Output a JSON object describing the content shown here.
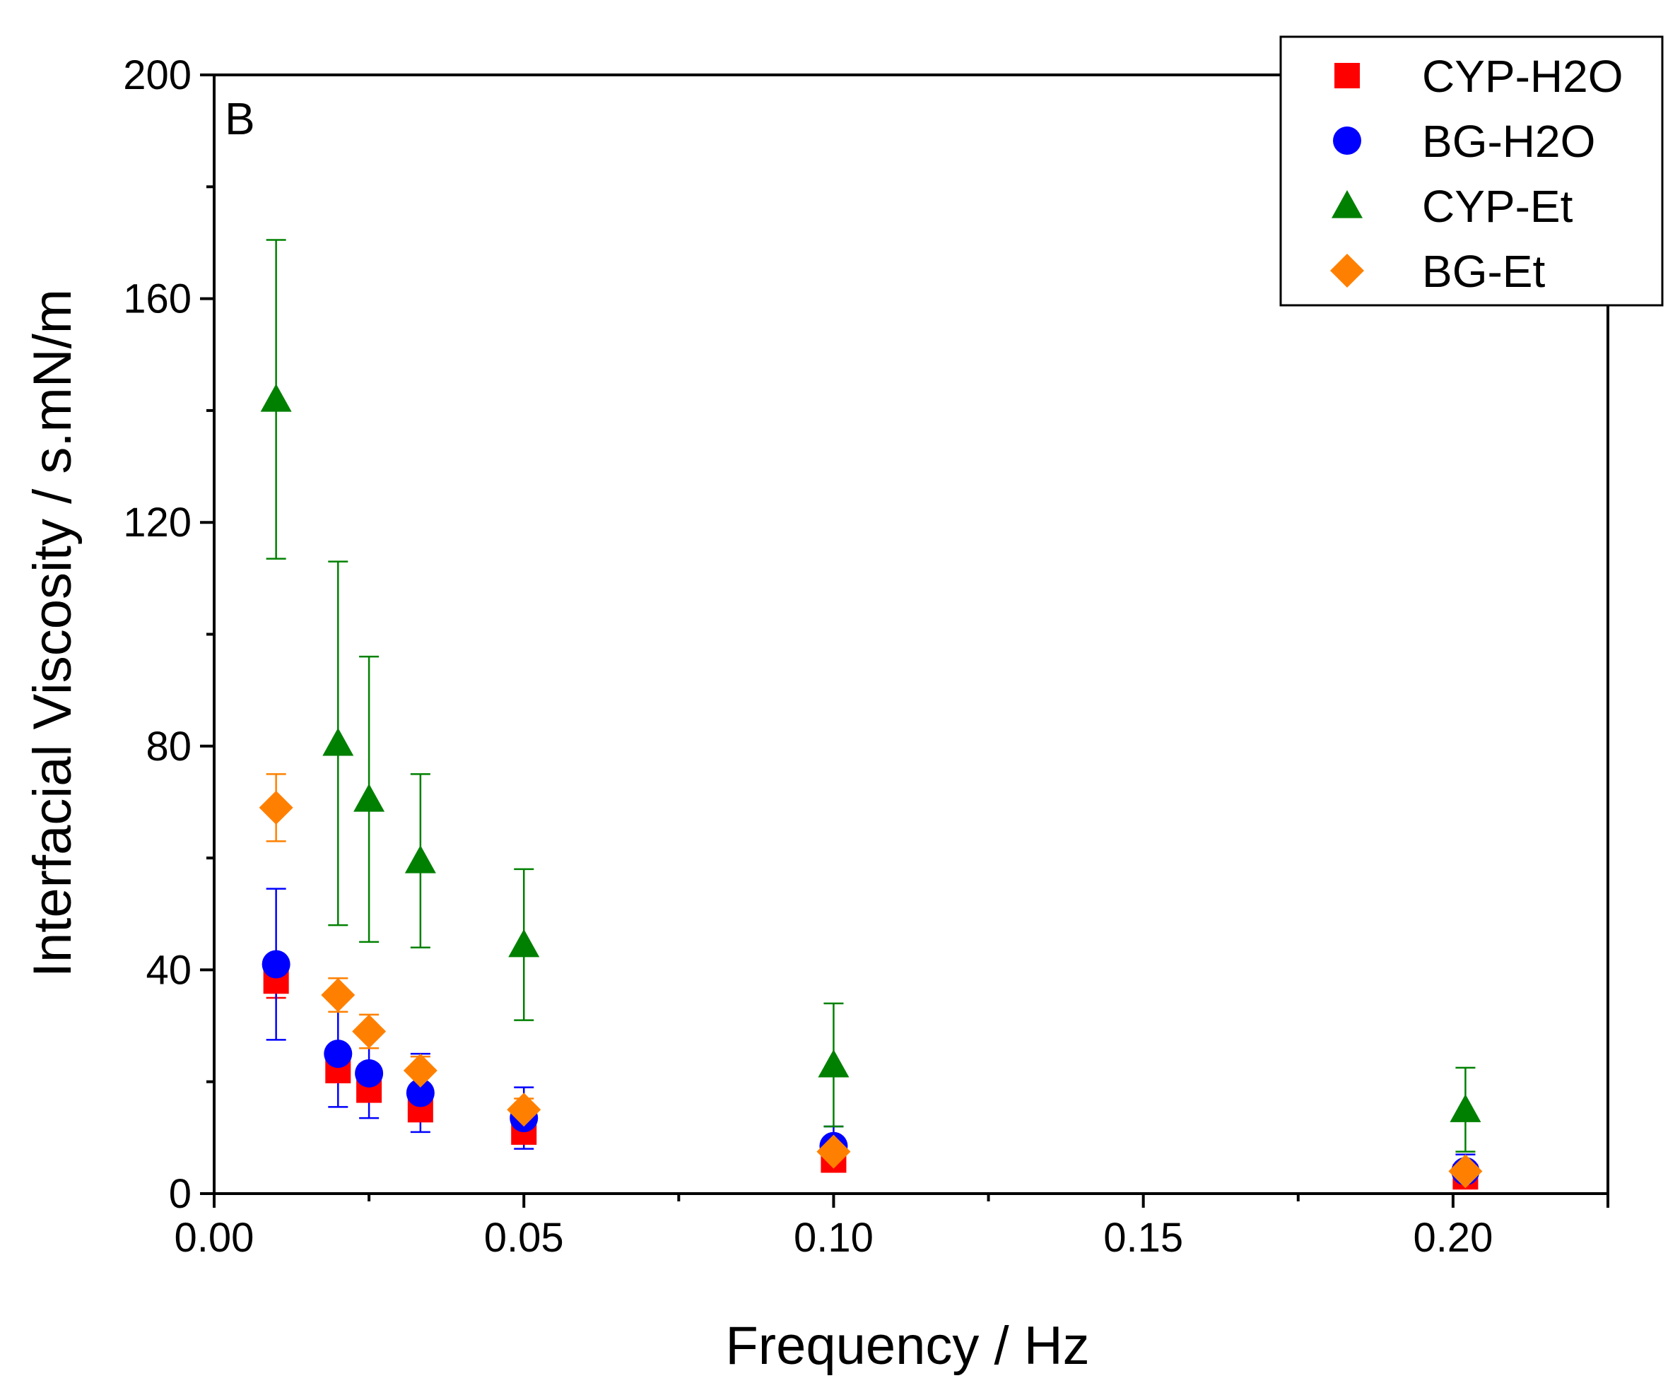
{
  "chart_data": {
    "type": "scatter",
    "panel_label": "B",
    "xlabel": "Frequency / Hz",
    "ylabel": "Interfacial Viscosity / s.mN/m",
    "xlim": [
      0,
      0.225
    ],
    "ylim": [
      0,
      200
    ],
    "x_ticks": [
      0,
      0.05,
      0.1,
      0.15,
      0.2
    ],
    "x_tick_labels": [
      "0.00",
      "0.05",
      "0.10",
      "0.15",
      "0.20"
    ],
    "y_ticks": [
      0,
      40,
      80,
      120,
      160,
      200
    ],
    "y_tick_labels": [
      "0",
      "40",
      "80",
      "120",
      "160",
      "200"
    ],
    "legend_position": "top-right",
    "series": [
      {
        "name": "CYP-H2O",
        "marker": "square",
        "color": "#ff0000",
        "points": [
          {
            "x": 0.01,
            "y": 38,
            "err": 3
          },
          {
            "x": 0.02,
            "y": 22,
            "err": 2
          },
          {
            "x": 0.025,
            "y": 18.5,
            "err": 2
          },
          {
            "x": 0.0333,
            "y": 15,
            "err": 1.5
          },
          {
            "x": 0.05,
            "y": 11,
            "err": 1.5
          },
          {
            "x": 0.1,
            "y": 6,
            "err": 1
          },
          {
            "x": 0.202,
            "y": 3,
            "err": 1
          }
        ]
      },
      {
        "name": "BG-H2O",
        "marker": "circle",
        "color": "#0000ff",
        "points": [
          {
            "x": 0.01,
            "y": 41,
            "err": 13.5
          },
          {
            "x": 0.02,
            "y": 25,
            "err": 9.5
          },
          {
            "x": 0.025,
            "y": 21.5,
            "err": 8
          },
          {
            "x": 0.0333,
            "y": 18,
            "err": 7
          },
          {
            "x": 0.05,
            "y": 13.5,
            "err": 5.5
          },
          {
            "x": 0.1,
            "y": 8.5,
            "err": 3.5
          },
          {
            "x": 0.202,
            "y": 4,
            "err": 3
          }
        ]
      },
      {
        "name": "CYP-Et",
        "marker": "triangle",
        "color": "#008000",
        "points": [
          {
            "x": 0.01,
            "y": 142,
            "err": 28.5
          },
          {
            "x": 0.02,
            "y": 80.5,
            "err": 32.5
          },
          {
            "x": 0.025,
            "y": 70.5,
            "err": 25.5
          },
          {
            "x": 0.0333,
            "y": 59.5,
            "err": 15.5
          },
          {
            "x": 0.05,
            "y": 44.5,
            "err": 13.5
          },
          {
            "x": 0.1,
            "y": 23,
            "err": 11
          },
          {
            "x": 0.202,
            "y": 15,
            "err": 7.5
          }
        ]
      },
      {
        "name": "BG-Et",
        "marker": "diamond",
        "color": "#ff8000",
        "points": [
          {
            "x": 0.01,
            "y": 69,
            "err": 6
          },
          {
            "x": 0.02,
            "y": 35.5,
            "err": 3
          },
          {
            "x": 0.025,
            "y": 29,
            "err": 3
          },
          {
            "x": 0.0333,
            "y": 22,
            "err": 2.5
          },
          {
            "x": 0.05,
            "y": 15,
            "err": 2
          },
          {
            "x": 0.1,
            "y": 7.5,
            "err": 1.5
          },
          {
            "x": 0.202,
            "y": 4,
            "err": 1
          }
        ]
      }
    ]
  }
}
